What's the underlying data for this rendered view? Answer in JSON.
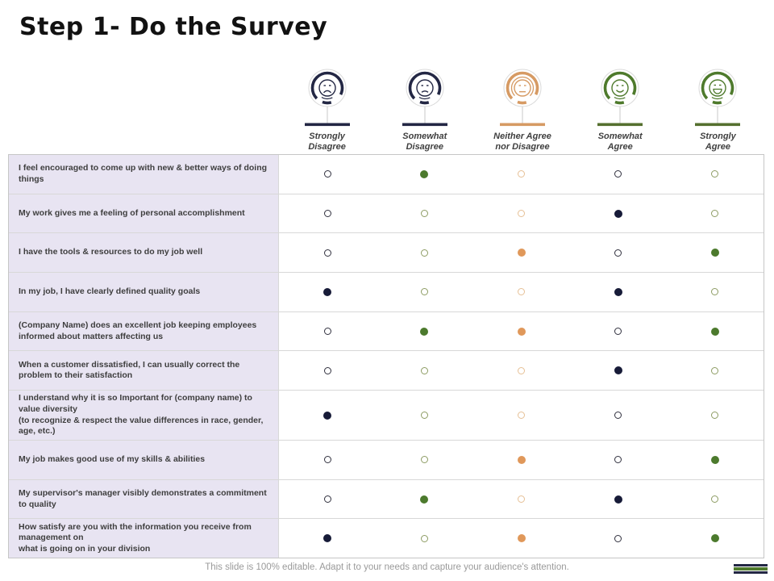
{
  "title": "Step 1- Do the Survey",
  "header": {
    "columns": [
      {
        "label": "Strongly\nDisagree",
        "icon": "sad-face-icon",
        "color": "#232744"
      },
      {
        "label": "Somewhat\nDisagree",
        "icon": "frown-face-icon",
        "color": "#232744"
      },
      {
        "label": "Neither Agree\nnor Disagree",
        "icon": "neutral-face-icon",
        "color": "#d69a63"
      },
      {
        "label": "Somewhat\nAgree",
        "icon": "smile-face-icon",
        "color": "#4e7a2c"
      },
      {
        "label": "Strongly\nAgree",
        "icon": "grin-face-icon",
        "color": "#4e7a2c"
      }
    ]
  },
  "table": {
    "rows": [
      {
        "question": "I feel encouraged to come up with new & better ways of doing things",
        "dots": [
          false,
          true,
          false,
          false,
          false
        ]
      },
      {
        "question": "My work gives me a feeling of personal accomplishment",
        "dots": [
          false,
          false,
          false,
          true,
          false
        ]
      },
      {
        "question": "I have the tools & resources to do my job well",
        "dots": [
          false,
          false,
          true,
          false,
          true
        ]
      },
      {
        "question": "In my job, I have clearly defined quality goals",
        "dots": [
          true,
          false,
          false,
          true,
          false
        ]
      },
      {
        "question": "(Company Name) does an excellent job keeping employees informed about matters affecting us",
        "dots": [
          false,
          true,
          true,
          false,
          true
        ]
      },
      {
        "question": "When a customer dissatisfied, I can usually correct the problem to their satisfaction",
        "dots": [
          false,
          false,
          false,
          true,
          false
        ]
      },
      {
        "question": "I understand why it is so Important for (company name) to value diversity\n(to recognize & respect the value differences in race, gender, age, etc.)",
        "dots": [
          true,
          false,
          false,
          false,
          false
        ]
      },
      {
        "question": "My job makes good use of my skills & abilities",
        "dots": [
          false,
          false,
          true,
          false,
          true
        ]
      },
      {
        "question": "My supervisor's manager visibly demonstrates a commitment to quality",
        "dots": [
          false,
          true,
          false,
          true,
          false
        ]
      },
      {
        "question": "How satisfy are you with the information you receive from management on\nwhat is going on in your division",
        "dots": [
          true,
          false,
          true,
          false,
          true
        ]
      }
    ]
  },
  "footer": {
    "note": "This slide is 100% editable. Adapt it to your needs and capture your audience's attention."
  },
  "colors": {
    "navy": "#232744",
    "green": "#4e7a2c",
    "orange": "#d69a63",
    "filled_navy": "#171b38",
    "filled_green": "#4c7a2d",
    "filled_orange": "#e0985a",
    "outline_green": "#8d9c63",
    "outline_tan": "#e6c096",
    "question_bg": "#e8e4f2",
    "row_border": "#d8d8d8"
  }
}
